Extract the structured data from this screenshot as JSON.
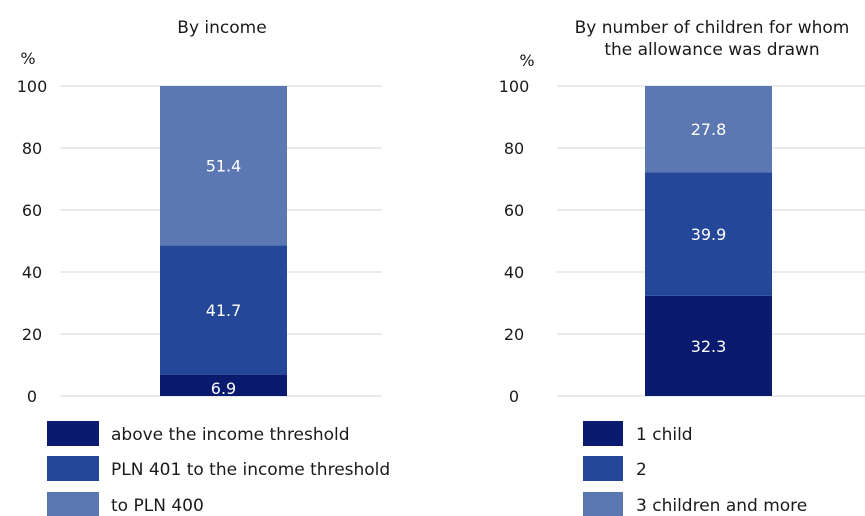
{
  "colors": {
    "dark": "#0a1a6e",
    "mid": "#25479a",
    "light": "#5c78b2",
    "grid": "#d4d4d4"
  },
  "chart_data": [
    {
      "type": "bar",
      "stacked": true,
      "title": "By income",
      "ylabel": "%",
      "ylim": [
        0,
        100
      ],
      "yticks": [
        "0",
        "20",
        "40",
        "60",
        "80",
        "100"
      ],
      "grid": true,
      "legend_position": "bottom",
      "series": [
        {
          "name": "above the income threshold",
          "value": 6.9,
          "label": "6.9",
          "color": "#0a1a6e"
        },
        {
          "name": "PLN 401 to the income threshold",
          "value": 41.7,
          "label": "41.7",
          "color": "#25479a"
        },
        {
          "name": "to PLN 400",
          "value": 51.4,
          "label": "51.4",
          "color": "#5c78b2"
        }
      ]
    },
    {
      "type": "bar",
      "stacked": true,
      "title": "By number of children for whom the allowance was drawn",
      "title_lines": [
        "By number of children for whom",
        "the allowance was drawn"
      ],
      "ylabel": "%",
      "ylim": [
        0,
        100
      ],
      "yticks": [
        "0",
        "20",
        "40",
        "60",
        "80",
        "100"
      ],
      "grid": true,
      "legend_position": "bottom",
      "series": [
        {
          "name": "1 child",
          "value": 32.3,
          "label": "32.3",
          "color": "#0a1a6e"
        },
        {
          "name": "2",
          "value": 39.9,
          "label": "39.9",
          "color": "#25479a"
        },
        {
          "name": "3 children and more",
          "value": 27.8,
          "label": "27.8",
          "color": "#5c78b2"
        }
      ]
    }
  ]
}
